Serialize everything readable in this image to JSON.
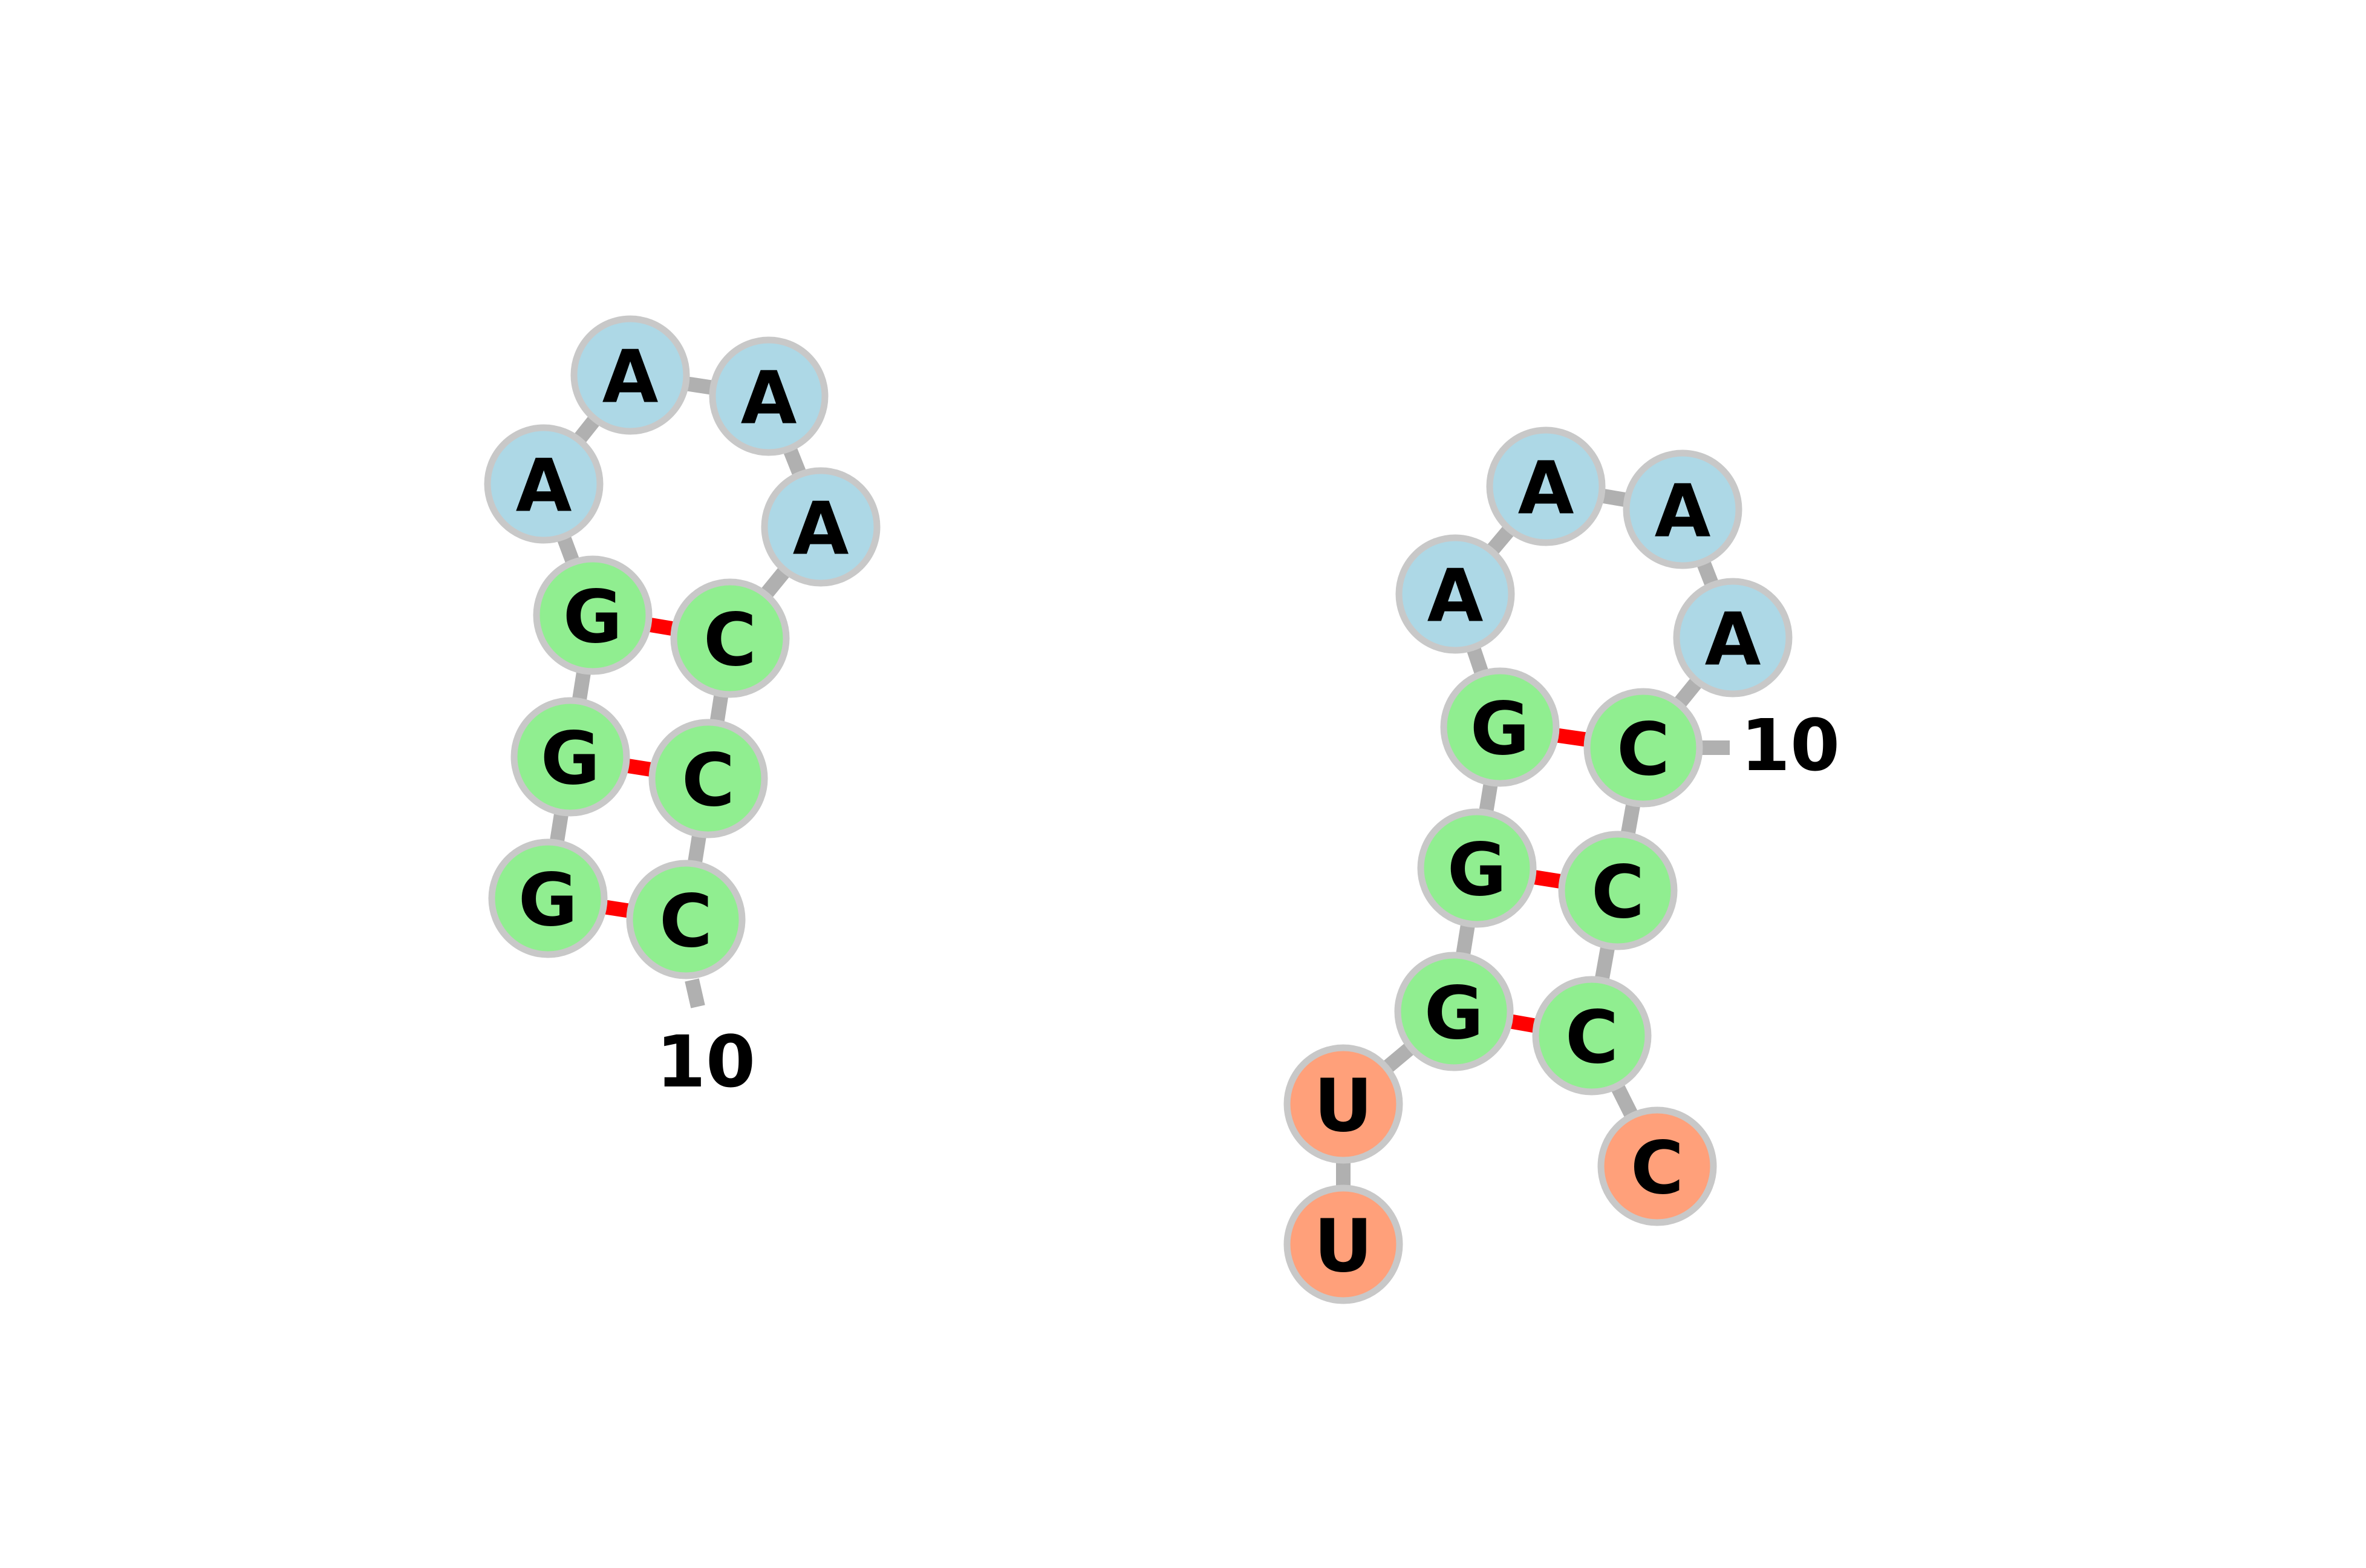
{
  "colors": {
    "loop": "#add8e6",
    "stem": "#90ee90",
    "dangling": "#ffa07a",
    "node_border": "#c8c8c8",
    "backbone": "#b0b0b0",
    "pair": "#ff0000"
  },
  "structures": [
    {
      "id": "structure-1",
      "nucleotides": [
        {
          "base": "G",
          "role": "stem"
        },
        {
          "base": "G",
          "role": "stem"
        },
        {
          "base": "G",
          "role": "stem"
        },
        {
          "base": "A",
          "role": "loop"
        },
        {
          "base": "A",
          "role": "loop"
        },
        {
          "base": "A",
          "role": "loop"
        },
        {
          "base": "A",
          "role": "loop"
        },
        {
          "base": "C",
          "role": "stem"
        },
        {
          "base": "C",
          "role": "stem"
        },
        {
          "base": "C",
          "role": "stem"
        }
      ],
      "pairs": [
        [
          1,
          10
        ],
        [
          2,
          9
        ],
        [
          3,
          8
        ]
      ],
      "position_label": {
        "text": "10",
        "index": 10
      }
    },
    {
      "id": "structure-2",
      "nucleotides": [
        {
          "base": "U",
          "role": "dangling"
        },
        {
          "base": "U",
          "role": "dangling"
        },
        {
          "base": "G",
          "role": "stem"
        },
        {
          "base": "G",
          "role": "stem"
        },
        {
          "base": "G",
          "role": "stem"
        },
        {
          "base": "A",
          "role": "loop"
        },
        {
          "base": "A",
          "role": "loop"
        },
        {
          "base": "A",
          "role": "loop"
        },
        {
          "base": "A",
          "role": "loop"
        },
        {
          "base": "C",
          "role": "stem"
        },
        {
          "base": "C",
          "role": "stem"
        },
        {
          "base": "C",
          "role": "stem"
        },
        {
          "base": "C",
          "role": "dangling"
        }
      ],
      "pairs": [
        [
          3,
          12
        ],
        [
          4,
          11
        ],
        [
          5,
          10
        ]
      ],
      "position_label": {
        "text": "10",
        "index": 10
      }
    }
  ]
}
